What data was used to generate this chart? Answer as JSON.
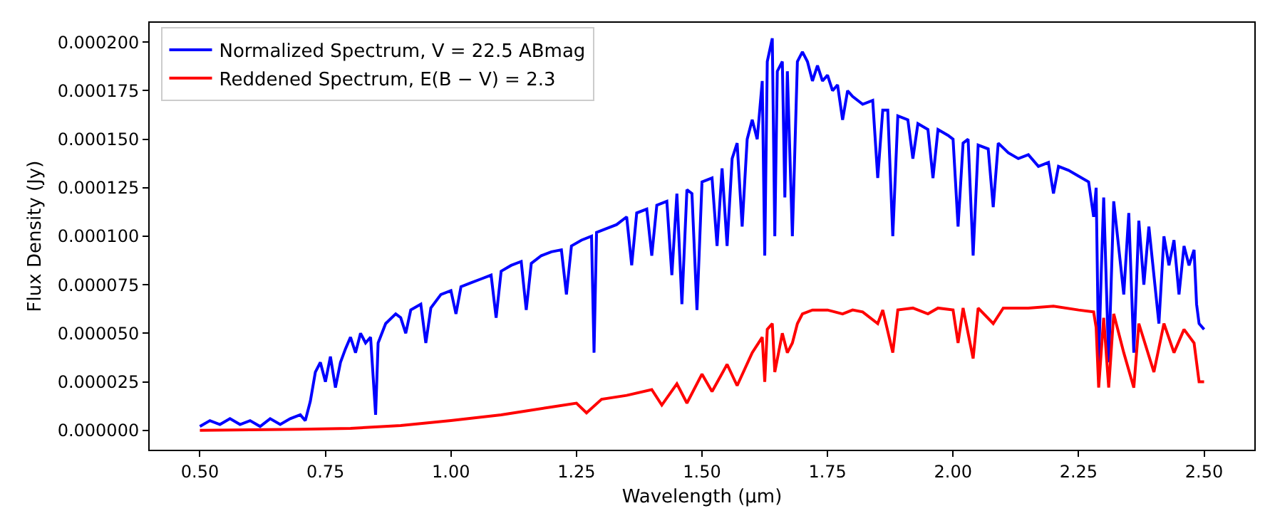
{
  "chart_data": {
    "type": "line",
    "xlabel": "Wavelength (μm)",
    "ylabel": "Flux Density (Jy)",
    "xlim": [
      0.4,
      2.6
    ],
    "ylim": [
      -1e-05,
      0.00021
    ],
    "xticks": [
      {
        "value": 0.5,
        "label": "0.50"
      },
      {
        "value": 0.75,
        "label": "0.75"
      },
      {
        "value": 1.0,
        "label": "1.00"
      },
      {
        "value": 1.25,
        "label": "1.25"
      },
      {
        "value": 1.5,
        "label": "1.50"
      },
      {
        "value": 1.75,
        "label": "1.75"
      },
      {
        "value": 2.0,
        "label": "2.00"
      },
      {
        "value": 2.25,
        "label": "2.25"
      },
      {
        "value": 2.5,
        "label": "2.50"
      }
    ],
    "yticks": [
      {
        "value": 0,
        "label": "0.000000"
      },
      {
        "value": 2.5e-05,
        "label": "0.000025"
      },
      {
        "value": 5e-05,
        "label": "0.000050"
      },
      {
        "value": 7.5e-05,
        "label": "0.000075"
      },
      {
        "value": 0.0001,
        "label": "0.000100"
      },
      {
        "value": 0.000125,
        "label": "0.000125"
      },
      {
        "value": 0.00015,
        "label": "0.000150"
      },
      {
        "value": 0.000175,
        "label": "0.000175"
      },
      {
        "value": 0.0002,
        "label": "0.000200"
      }
    ],
    "grid": false,
    "legend": "top left",
    "marker": "none",
    "line_style": "solid",
    "series": [
      {
        "name": "Normalized Spectrum, V = 22.5 ABmag",
        "color": "#0000ff",
        "x": [
          0.5,
          0.52,
          0.54,
          0.56,
          0.58,
          0.6,
          0.62,
          0.64,
          0.66,
          0.68,
          0.7,
          0.71,
          0.72,
          0.73,
          0.74,
          0.75,
          0.76,
          0.77,
          0.78,
          0.79,
          0.8,
          0.81,
          0.82,
          0.83,
          0.84,
          0.85,
          0.855,
          0.87,
          0.89,
          0.9,
          0.91,
          0.92,
          0.94,
          0.95,
          0.96,
          0.98,
          1.0,
          1.01,
          1.02,
          1.04,
          1.06,
          1.08,
          1.09,
          1.1,
          1.12,
          1.14,
          1.15,
          1.16,
          1.18,
          1.2,
          1.22,
          1.23,
          1.24,
          1.26,
          1.28,
          1.285,
          1.29,
          1.31,
          1.33,
          1.35,
          1.36,
          1.37,
          1.39,
          1.4,
          1.41,
          1.43,
          1.44,
          1.45,
          1.46,
          1.47,
          1.48,
          1.49,
          1.5,
          1.52,
          1.53,
          1.54,
          1.55,
          1.56,
          1.57,
          1.58,
          1.59,
          1.6,
          1.61,
          1.62,
          1.625,
          1.63,
          1.64,
          1.645,
          1.65,
          1.66,
          1.665,
          1.67,
          1.68,
          1.69,
          1.7,
          1.71,
          1.72,
          1.73,
          1.74,
          1.75,
          1.76,
          1.77,
          1.78,
          1.79,
          1.8,
          1.82,
          1.84,
          1.85,
          1.86,
          1.87,
          1.88,
          1.89,
          1.91,
          1.92,
          1.93,
          1.95,
          1.96,
          1.97,
          1.99,
          2.0,
          2.01,
          2.02,
          2.03,
          2.04,
          2.05,
          2.07,
          2.08,
          2.09,
          2.11,
          2.13,
          2.15,
          2.17,
          2.19,
          2.2,
          2.21,
          2.23,
          2.25,
          2.27,
          2.28,
          2.285,
          2.29,
          2.295,
          2.3,
          2.31,
          2.32,
          2.34,
          2.35,
          2.36,
          2.37,
          2.38,
          2.39,
          2.41,
          2.42,
          2.43,
          2.44,
          2.45,
          2.46,
          2.47,
          2.48,
          2.485,
          2.49,
          2.5
        ],
        "values": [
          2e-06,
          5e-06,
          3e-06,
          6e-06,
          3e-06,
          5e-06,
          2e-06,
          6e-06,
          3e-06,
          6e-06,
          8e-06,
          5e-06,
          1.5e-05,
          3e-05,
          3.5e-05,
          2.5e-05,
          3.8e-05,
          2.2e-05,
          3.5e-05,
          4.2e-05,
          4.8e-05,
          4e-05,
          5e-05,
          4.5e-05,
          4.8e-05,
          8e-06,
          4.5e-05,
          5.5e-05,
          6e-05,
          5.8e-05,
          5e-05,
          6.2e-05,
          6.5e-05,
          4.5e-05,
          6.3e-05,
          7e-05,
          7.2e-05,
          6e-05,
          7.4e-05,
          7.6e-05,
          7.8e-05,
          8e-05,
          5.8e-05,
          8.2e-05,
          8.5e-05,
          8.7e-05,
          6.2e-05,
          8.6e-05,
          9e-05,
          9.2e-05,
          9.3e-05,
          7e-05,
          9.5e-05,
          9.8e-05,
          0.0001,
          4e-05,
          0.000102,
          0.000104,
          0.000106,
          0.00011,
          8.5e-05,
          0.000112,
          0.000114,
          9e-05,
          0.000116,
          0.000118,
          8e-05,
          0.000122,
          6.5e-05,
          0.000124,
          0.000122,
          6.2e-05,
          0.000128,
          0.00013,
          9.5e-05,
          0.000135,
          9.5e-05,
          0.00014,
          0.000148,
          0.000105,
          0.00015,
          0.00016,
          0.00015,
          0.00018,
          9e-05,
          0.00019,
          0.000202,
          0.0001,
          0.000185,
          0.00019,
          0.00012,
          0.000185,
          0.0001,
          0.00019,
          0.000195,
          0.00019,
          0.00018,
          0.000188,
          0.00018,
          0.000183,
          0.000175,
          0.000178,
          0.00016,
          0.000175,
          0.000172,
          0.000168,
          0.00017,
          0.00013,
          0.000165,
          0.000165,
          0.0001,
          0.000162,
          0.00016,
          0.00014,
          0.000158,
          0.000155,
          0.00013,
          0.000155,
          0.000152,
          0.00015,
          0.000105,
          0.000148,
          0.00015,
          9e-05,
          0.000147,
          0.000145,
          0.000115,
          0.000148,
          0.000143,
          0.00014,
          0.000142,
          0.000136,
          0.000138,
          0.000122,
          0.000136,
          0.000134,
          0.000131,
          0.000128,
          0.00011,
          0.000125,
          3.5e-05,
          8e-05,
          0.00012,
          3.5e-05,
          0.000118,
          7e-05,
          0.000112,
          4e-05,
          0.000108,
          7.5e-05,
          0.000105,
          5.5e-05,
          0.0001,
          8.5e-05,
          9.8e-05,
          7e-05,
          9.5e-05,
          8.5e-05,
          9.3e-05,
          6.5e-05,
          5.5e-05,
          5.2e-05
        ]
      },
      {
        "name": "Reddened Spectrum, E(B − V) = 2.3",
        "color": "#ff0000",
        "x": [
          0.5,
          0.7,
          0.8,
          0.9,
          1.0,
          1.1,
          1.15,
          1.2,
          1.25,
          1.27,
          1.3,
          1.35,
          1.4,
          1.42,
          1.45,
          1.47,
          1.5,
          1.52,
          1.55,
          1.57,
          1.6,
          1.62,
          1.625,
          1.63,
          1.64,
          1.645,
          1.66,
          1.67,
          1.68,
          1.69,
          1.7,
          1.72,
          1.75,
          1.78,
          1.8,
          1.82,
          1.85,
          1.86,
          1.88,
          1.89,
          1.92,
          1.95,
          1.97,
          2.0,
          2.01,
          2.02,
          2.04,
          2.05,
          2.08,
          2.1,
          2.15,
          2.2,
          2.25,
          2.28,
          2.285,
          2.29,
          2.3,
          2.31,
          2.32,
          2.34,
          2.36,
          2.37,
          2.4,
          2.42,
          2.44,
          2.46,
          2.48,
          2.485,
          2.49,
          2.5
        ],
        "values": [
          0,
          5e-07,
          1e-06,
          2.5e-06,
          5e-06,
          8e-06,
          1e-05,
          1.2e-05,
          1.4e-05,
          9e-06,
          1.6e-05,
          1.8e-05,
          2.1e-05,
          1.3e-05,
          2.4e-05,
          1.4e-05,
          2.9e-05,
          2e-05,
          3.4e-05,
          2.3e-05,
          4e-05,
          4.8e-05,
          2.5e-05,
          5.2e-05,
          5.5e-05,
          3e-05,
          5e-05,
          4e-05,
          4.5e-05,
          5.5e-05,
          6e-05,
          6.2e-05,
          6.2e-05,
          6e-05,
          6.2e-05,
          6.1e-05,
          5.5e-05,
          6.2e-05,
          4e-05,
          6.2e-05,
          6.3e-05,
          6e-05,
          6.3e-05,
          6.2e-05,
          4.5e-05,
          6.3e-05,
          3.7e-05,
          6.3e-05,
          5.5e-05,
          6.3e-05,
          6.3e-05,
          6.4e-05,
          6.2e-05,
          6.1e-05,
          5.3e-05,
          2.2e-05,
          5.8e-05,
          2.2e-05,
          6e-05,
          4e-05,
          2.2e-05,
          5.5e-05,
          3e-05,
          5.5e-05,
          4e-05,
          5.2e-05,
          4.5e-05,
          3.5e-05,
          2.5e-05,
          2.5e-05
        ]
      }
    ]
  }
}
